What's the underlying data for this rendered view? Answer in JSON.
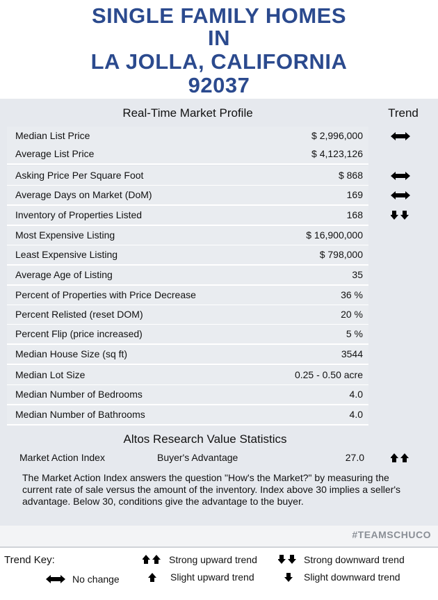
{
  "title_lines": [
    "SINGLE FAMILY HOMES",
    "IN",
    "LA JOLLA, CALIFORNIA",
    "92037"
  ],
  "profile": {
    "heading": "Real-Time Market Profile",
    "trend_heading": "Trend",
    "rows": [
      {
        "label": "Median List Price",
        "value": "$ 2,996,000"
      },
      {
        "label": "Average List Price",
        "value": "$ 4,123,126"
      },
      {
        "label": "Asking Price Per Square Foot",
        "value": "$ 868"
      },
      {
        "label": "Average Days on Market (DoM)",
        "value": "169"
      },
      {
        "label": "Inventory of Properties Listed",
        "value": "168"
      },
      {
        "label": "Most Expensive Listing",
        "value": "$ 16,900,000"
      },
      {
        "label": "Least Expensive Listing",
        "value": "$ 798,000"
      },
      {
        "label": "Average Age of Listing",
        "value": "35"
      },
      {
        "label": "Percent of Properties with Price Decrease",
        "value": "36 %"
      },
      {
        "label": "Percent Relisted (reset DOM)",
        "value": "20 %"
      },
      {
        "label": "Percent Flip (price increased)",
        "value": "5 %"
      },
      {
        "label": "Median House Size (sq ft)",
        "value": "3544"
      },
      {
        "label": "Median Lot Size",
        "value": "0.25 - 0.50 acre"
      },
      {
        "label": "Median Number of Bedrooms",
        "value": "4.0"
      },
      {
        "label": "Median Number of Bathrooms",
        "value": "4.0"
      }
    ]
  },
  "altos": {
    "heading": "Altos Research Value Statistics",
    "label": "Market Action Index",
    "status": "Buyer's Advantage",
    "value": "27.0",
    "description": "The Market Action Index answers the question \"How's the Market?\" by measuring the current rate of sale versus the amount of the inventory.  Index above 30 implies a seller's advantage. Below 30, conditions give the advantage to the buyer."
  },
  "hashtag": "#TEAMSCHUCO",
  "trend_key": {
    "title": "Trend Key:",
    "strong_up": "Strong upward trend",
    "strong_down": "Strong downward trend",
    "no_change": "No change",
    "slight_up": "Slight upward trend",
    "slight_down": "Slight downward trend"
  }
}
